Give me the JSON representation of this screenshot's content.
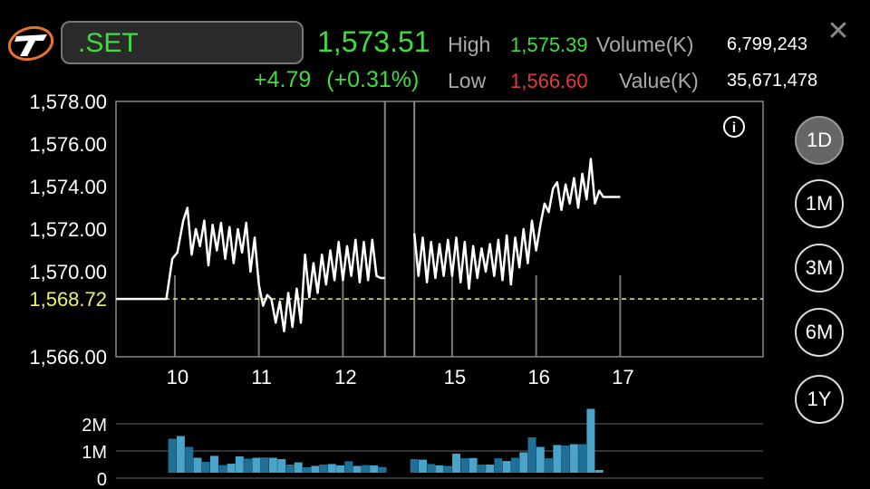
{
  "header": {
    "symbol": ".SET",
    "price": "1,573.51",
    "change": "+4.79",
    "change_pct": "(+0.31%)",
    "high_label": "High",
    "high_value": "1,575.39",
    "low_label": "Low",
    "low_value": "1,566.60",
    "volume_label": "Volume(K)",
    "volume_value": "6,799,243",
    "value_label": "Value(K)",
    "value_value": "35,671,478",
    "close_icon": "close-icon",
    "logo_icon": "app-logo-icon"
  },
  "colors": {
    "up": "#3fdc3f",
    "down": "#e23b3b",
    "reference": "#f0f06a",
    "volume_bar": "#4aa3c8",
    "volume_bar_dark": "#1f6f96"
  },
  "range_buttons": [
    {
      "label": "1D",
      "active": true
    },
    {
      "label": "1M",
      "active": false
    },
    {
      "label": "3M",
      "active": false
    },
    {
      "label": "6M",
      "active": false
    },
    {
      "label": "1Y",
      "active": false
    }
  ],
  "info_icon": "info-icon",
  "chart_data": [
    {
      "type": "line",
      "y_ticks": [
        "1,578.00",
        "1,576.00",
        "1,574.00",
        "1,572.00",
        "1,570.00",
        "1,566.00"
      ],
      "reference_label": "1,568.72",
      "reference_value": 1568.72,
      "ylim": [
        1566,
        1578
      ],
      "x_ticks": [
        "10",
        "11",
        "12",
        "15",
        "16",
        "17"
      ],
      "x_range": [
        9.3,
        17
      ],
      "x_tick_values": [
        10,
        11,
        12,
        13.3,
        14.3,
        15.3
      ],
      "break_positions": [
        12.5,
        12.85
      ],
      "series": [
        {
          "x": [
            9.3,
            9.9,
            9.97,
            10.03,
            10.1,
            10.15,
            10.2,
            10.25,
            10.3,
            10.35,
            10.4,
            10.45,
            10.5,
            10.55,
            10.6,
            10.65,
            10.7,
            10.75,
            10.8,
            10.85,
            10.9,
            10.95,
            11.0,
            11.05,
            11.1,
            11.15,
            11.2,
            11.25,
            11.3,
            11.35,
            11.4,
            11.45,
            11.5,
            11.55,
            11.6,
            11.65,
            11.7,
            11.75,
            11.8,
            11.85,
            11.9,
            11.95,
            12.0,
            12.05,
            12.1,
            12.15,
            12.2,
            12.25,
            12.3,
            12.35,
            12.4,
            12.45,
            12.5
          ],
          "y": [
            1568.72,
            1568.72,
            1570.6,
            1570.9,
            1572.4,
            1573.0,
            1570.8,
            1572.0,
            1571.2,
            1572.4,
            1570.3,
            1572.2,
            1571.0,
            1572.3,
            1570.6,
            1572.1,
            1570.4,
            1572.0,
            1570.9,
            1572.3,
            1570.0,
            1571.6,
            1569.4,
            1568.4,
            1568.9,
            1568.7,
            1567.6,
            1568.6,
            1567.2,
            1569.0,
            1567.4,
            1569.2,
            1567.6,
            1570.8,
            1568.8,
            1570.4,
            1569.0,
            1570.8,
            1569.4,
            1571.0,
            1569.6,
            1571.4,
            1569.6,
            1571.2,
            1569.8,
            1571.5,
            1569.5,
            1571.4,
            1569.6,
            1571.5,
            1569.8,
            1569.7,
            1569.7
          ]
        },
        {
          "x": [
            12.85,
            12.9,
            12.95,
            13.0,
            13.05,
            13.1,
            13.15,
            13.2,
            13.25,
            13.3,
            13.35,
            13.4,
            13.45,
            13.5,
            13.55,
            13.6,
            13.65,
            13.7,
            13.75,
            13.8,
            13.85,
            13.9,
            13.95,
            14.0,
            14.05,
            14.1,
            14.15,
            14.2,
            14.25,
            14.3,
            14.35,
            14.4,
            14.45,
            14.5,
            14.55,
            14.6,
            14.65,
            14.7,
            14.75,
            14.8,
            14.85,
            14.9,
            14.95,
            15.0,
            15.05,
            15.1,
            15.3
          ],
          "y": [
            1571.8,
            1569.8,
            1571.6,
            1569.5,
            1571.4,
            1569.7,
            1571.3,
            1569.8,
            1571.5,
            1569.8,
            1571.6,
            1569.5,
            1571.4,
            1569.2,
            1571.2,
            1569.7,
            1571.1,
            1570.0,
            1571.3,
            1569.8,
            1571.5,
            1569.6,
            1571.7,
            1569.4,
            1571.6,
            1570.2,
            1572.0,
            1570.4,
            1572.4,
            1571.0,
            1572.2,
            1573.2,
            1572.8,
            1573.9,
            1574.2,
            1572.9,
            1574.1,
            1573.2,
            1574.4,
            1573.0,
            1574.6,
            1573.4,
            1575.3,
            1573.2,
            1573.8,
            1573.51,
            1573.51
          ]
        }
      ]
    },
    {
      "type": "bar",
      "y_ticks": [
        "2M",
        "1M",
        "0"
      ],
      "ylim": [
        0,
        2400000
      ],
      "series": [
        {
          "x": [
            9.97,
            10.07,
            10.17,
            10.27,
            10.37,
            10.47,
            10.57,
            10.67,
            10.77,
            10.87,
            10.97,
            11.07,
            11.17,
            11.27,
            11.37,
            11.47,
            11.57,
            11.67,
            11.77,
            11.87,
            11.97,
            12.07,
            12.17,
            12.27,
            12.37,
            12.47,
            12.85,
            12.95,
            13.05,
            13.15,
            13.25,
            13.35,
            13.45,
            13.55,
            13.65,
            13.75,
            13.85,
            13.95,
            14.05,
            14.15,
            14.25,
            14.35,
            14.45,
            14.55,
            14.65,
            14.75,
            14.85,
            14.95,
            15.05
          ],
          "values": [
            1250000,
            1350000,
            950000,
            550000,
            400000,
            620000,
            280000,
            330000,
            600000,
            520000,
            550000,
            560000,
            550000,
            500000,
            300000,
            380000,
            200000,
            250000,
            300000,
            320000,
            270000,
            420000,
            250000,
            280000,
            270000,
            210000,
            500000,
            480000,
            320000,
            270000,
            250000,
            700000,
            530000,
            540000,
            300000,
            300000,
            530000,
            430000,
            550000,
            750000,
            1300000,
            950000,
            530000,
            1020000,
            1000000,
            1050000,
            1050000,
            2350000,
            100000
          ],
          "dark": [
            true,
            false,
            true,
            false,
            true,
            false,
            true,
            false,
            false,
            true,
            false,
            true,
            false,
            false,
            true,
            false,
            true,
            false,
            true,
            false,
            false,
            true,
            false,
            true,
            false,
            true,
            true,
            false,
            true,
            false,
            true,
            false,
            true,
            false,
            true,
            false,
            true,
            false,
            true,
            false,
            true,
            false,
            true,
            false,
            true,
            false,
            true,
            false,
            false
          ]
        }
      ]
    }
  ]
}
